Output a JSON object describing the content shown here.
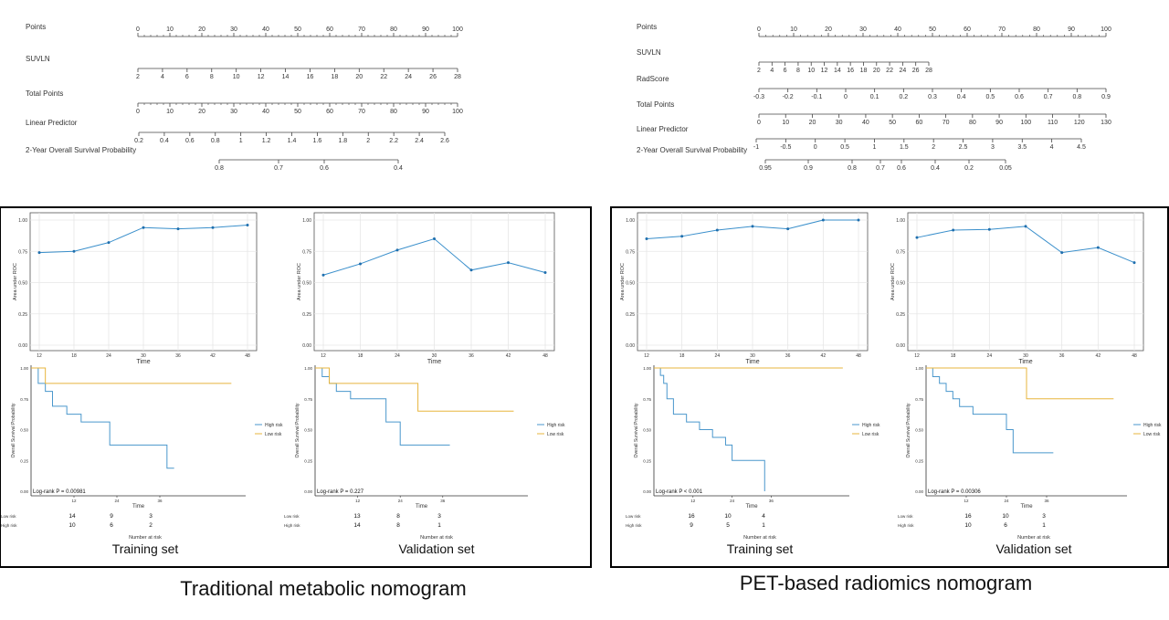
{
  "colors": {
    "roc": "#3a8fcb",
    "high_risk": "#4a97cc",
    "low_risk": "#e7b53d",
    "axis": "#333333",
    "grid": "#e6e6e6"
  },
  "nomogram_left": {
    "rows": [
      {
        "label": "Points",
        "ticks": [
          "0",
          "10",
          "20",
          "30",
          "40",
          "50",
          "60",
          "70",
          "80",
          "90",
          "100"
        ]
      },
      {
        "label": "SUVLN",
        "ticks": [
          "2",
          "4",
          "6",
          "8",
          "10",
          "12",
          "14",
          "16",
          "18",
          "20",
          "22",
          "24",
          "26",
          "28"
        ]
      },
      {
        "label": "Total Points",
        "ticks": [
          "0",
          "10",
          "20",
          "30",
          "40",
          "50",
          "60",
          "70",
          "80",
          "90",
          "100"
        ]
      },
      {
        "label": "Linear Predictor",
        "ticks": [
          "0.2",
          "0.4",
          "0.6",
          "0.8",
          "1",
          "1.2",
          "1.4",
          "1.6",
          "1.8",
          "2",
          "2.2",
          "2.4",
          "2.6"
        ]
      },
      {
        "label": "2-Year Overall Survival Probability",
        "ticks": [
          "0.8",
          "0.7",
          "0.6",
          "0.4"
        ]
      }
    ]
  },
  "nomogram_right": {
    "rows": [
      {
        "label": "Points",
        "ticks": [
          "0",
          "10",
          "20",
          "30",
          "40",
          "50",
          "60",
          "70",
          "80",
          "90",
          "100"
        ]
      },
      {
        "label": "SUVLN",
        "ticks": [
          "2",
          "4",
          "6",
          "8",
          "10",
          "12",
          "14",
          "16",
          "18",
          "20",
          "22",
          "24",
          "26",
          "28"
        ]
      },
      {
        "label": "RadScore",
        "ticks": [
          "-0.3",
          "-0.2",
          "-0.1",
          "0",
          "0.1",
          "0.2",
          "0.3",
          "0.4",
          "0.5",
          "0.6",
          "0.7",
          "0.8",
          "0.9"
        ]
      },
      {
        "label": "Total Points",
        "ticks": [
          "0",
          "10",
          "20",
          "30",
          "40",
          "50",
          "60",
          "70",
          "80",
          "90",
          "100",
          "110",
          "120",
          "130"
        ]
      },
      {
        "label": "Linear Predictor",
        "ticks": [
          "-1",
          "-0.5",
          "0",
          "0.5",
          "1",
          "1.5",
          "2",
          "2.5",
          "3",
          "3.5",
          "4",
          "4.5"
        ]
      },
      {
        "label": "2-Year Overall Survival Probability",
        "ticks": [
          "0.95",
          "0.9",
          "0.8",
          "0.7",
          "0.6",
          "0.4",
          "0.2",
          "0.05"
        ]
      }
    ]
  },
  "chart_data": [
    {
      "id": "roc_trad_train",
      "type": "line",
      "xlabel": "Time",
      "ylabel": "Area under ROC",
      "x": [
        12,
        18,
        24,
        30,
        36,
        42,
        48
      ],
      "y": [
        0.74,
        0.75,
        0.82,
        0.94,
        0.93,
        0.94,
        0.96
      ],
      "yticks": [
        "0.00",
        "0.25",
        "0.50",
        "0.75",
        "1.00"
      ],
      "ylim": [
        0,
        1
      ],
      "xlim": [
        12,
        48
      ]
    },
    {
      "id": "roc_trad_valid",
      "type": "line",
      "xlabel": "Time",
      "ylabel": "Area under ROC",
      "x": [
        12,
        18,
        24,
        30,
        36,
        42,
        48
      ],
      "y": [
        0.56,
        0.65,
        0.76,
        0.85,
        0.6,
        0.66,
        0.58
      ],
      "yticks": [
        "0.00",
        "0.25",
        "0.50",
        "0.75",
        "1.00"
      ],
      "ylim": [
        0,
        1
      ],
      "xlim": [
        12,
        48
      ]
    },
    {
      "id": "roc_pet_train",
      "type": "line",
      "xlabel": "Time",
      "ylabel": "Area under ROC",
      "x": [
        12,
        18,
        24,
        30,
        36,
        42,
        48
      ],
      "y": [
        0.85,
        0.87,
        0.92,
        0.95,
        0.93,
        1.0,
        1.0
      ],
      "yticks": [
        "0.00",
        "0.25",
        "0.50",
        "0.75",
        "1.00"
      ],
      "ylim": [
        0,
        1
      ],
      "xlim": [
        12,
        48
      ]
    },
    {
      "id": "roc_pet_valid",
      "type": "line",
      "xlabel": "Time",
      "ylabel": "Area under ROC",
      "x": [
        12,
        18,
        24,
        30,
        36,
        42,
        48
      ],
      "y": [
        0.86,
        0.92,
        0.925,
        0.95,
        0.74,
        0.78,
        0.66
      ],
      "yticks": [
        "0.00",
        "0.25",
        "0.50",
        "0.75",
        "1.00"
      ],
      "ylim": [
        0,
        1
      ],
      "xlim": [
        12,
        48
      ]
    },
    {
      "id": "km_trad_train",
      "type": "line",
      "xlabel": "Time",
      "ylabel": "Overall Survival Probability",
      "yticks": [
        "0.00",
        "0.25",
        "0.50",
        "0.75",
        "1.00"
      ],
      "xticks": [
        "12",
        "24",
        "36"
      ],
      "xlim": [
        0,
        60
      ],
      "pvalue": "Log-rank P = 0.00981",
      "series": [
        {
          "name": "High risk",
          "color_key": "high_risk",
          "x": [
            0,
            2,
            2,
            4,
            4,
            6,
            6,
            10,
            10,
            14,
            14,
            22,
            22,
            30,
            30,
            38,
            38,
            40
          ],
          "y": [
            1,
            1,
            0.875,
            0.875,
            0.81,
            0.81,
            0.69,
            0.69,
            0.625,
            0.625,
            0.5625,
            0.5625,
            0.375,
            0.375,
            0.375,
            0.375,
            0.1875,
            0.1875
          ]
        },
        {
          "name": "Low risk",
          "color_key": "low_risk",
          "x": [
            0,
            4,
            4,
            56
          ],
          "y": [
            1,
            1,
            0.875,
            0.875
          ]
        }
      ],
      "risk_table": {
        "title": "Number at risk",
        "rows": [
          {
            "label": "Low risk",
            "values": [
              "14",
              "9",
              "3"
            ]
          },
          {
            "label": "High risk",
            "values": [
              "10",
              "6",
              "2"
            ]
          }
        ]
      },
      "set_label": "Training set"
    },
    {
      "id": "km_trad_valid",
      "type": "line",
      "xlabel": "Time",
      "ylabel": "Overall Survival Probability",
      "yticks": [
        "0.00",
        "0.25",
        "0.50",
        "0.75",
        "1.00"
      ],
      "xticks": [
        "12",
        "24",
        "36"
      ],
      "xlim": [
        0,
        60
      ],
      "pvalue": "Log-rank P = 0.227",
      "series": [
        {
          "name": "High risk",
          "color_key": "high_risk",
          "x": [
            0,
            2,
            2,
            4,
            4,
            6,
            6,
            10,
            10,
            20,
            20,
            24,
            24,
            26,
            26,
            38
          ],
          "y": [
            1,
            1,
            0.93,
            0.93,
            0.875,
            0.875,
            0.81,
            0.81,
            0.75,
            0.75,
            0.5625,
            0.5625,
            0.375,
            0.375,
            0.375,
            0.375
          ]
        },
        {
          "name": "Low risk",
          "color_key": "low_risk",
          "x": [
            0,
            4,
            4,
            24,
            24,
            29,
            29,
            56
          ],
          "y": [
            1,
            1,
            0.875,
            0.875,
            0.875,
            0.875,
            0.65,
            0.65
          ]
        }
      ],
      "risk_table": {
        "title": "Number at risk",
        "rows": [
          {
            "label": "Low risk",
            "values": [
              "13",
              "8",
              "3"
            ]
          },
          {
            "label": "High risk",
            "values": [
              "14",
              "8",
              "1"
            ]
          }
        ]
      },
      "set_label": "Validation set"
    },
    {
      "id": "km_pet_train",
      "type": "line",
      "xlabel": "Time",
      "ylabel": "Overall Survival Probability",
      "yticks": [
        "0.00",
        "0.25",
        "0.50",
        "0.75",
        "1.00"
      ],
      "xticks": [
        "12",
        "24",
        "36"
      ],
      "xlim": [
        0,
        60
      ],
      "pvalue": "Log-rank P < 0.001",
      "series": [
        {
          "name": "High risk",
          "color_key": "high_risk",
          "x": [
            0,
            2,
            2,
            3,
            3,
            4,
            4,
            6,
            6,
            10,
            10,
            14,
            14,
            18,
            18,
            22,
            22,
            24,
            24,
            34,
            34
          ],
          "y": [
            1,
            1,
            0.94,
            0.94,
            0.875,
            0.875,
            0.75,
            0.75,
            0.625,
            0.625,
            0.5625,
            0.5625,
            0.5,
            0.5,
            0.4375,
            0.4375,
            0.375,
            0.375,
            0.25,
            0.25,
            0.0
          ]
        },
        {
          "name": "Low risk",
          "color_key": "low_risk",
          "x": [
            0,
            58
          ],
          "y": [
            1,
            1
          ]
        }
      ],
      "risk_table": {
        "title": "Number at risk",
        "rows": [
          {
            "label": "Low risk",
            "values": [
              "16",
              "10",
              "4"
            ]
          },
          {
            "label": "High risk",
            "values": [
              "9",
              "5",
              "1"
            ]
          }
        ]
      },
      "set_label": "Training set"
    },
    {
      "id": "km_pet_valid",
      "type": "line",
      "xlabel": "Time",
      "ylabel": "Overall Survival Probability",
      "yticks": [
        "0.00",
        "0.25",
        "0.50",
        "0.75",
        "1.00"
      ],
      "xticks": [
        "12",
        "24",
        "36"
      ],
      "xlim": [
        0,
        60
      ],
      "pvalue": "Log-rank P = 0.00306",
      "series": [
        {
          "name": "High risk",
          "color_key": "high_risk",
          "x": [
            0,
            2,
            2,
            4,
            4,
            6,
            6,
            8,
            8,
            10,
            10,
            14,
            14,
            24,
            24,
            26,
            26,
            38
          ],
          "y": [
            1,
            1,
            0.93,
            0.93,
            0.875,
            0.875,
            0.81,
            0.81,
            0.75,
            0.75,
            0.6875,
            0.6875,
            0.625,
            0.625,
            0.5,
            0.5,
            0.3125,
            0.3125
          ]
        },
        {
          "name": "Low risk",
          "color_key": "low_risk",
          "x": [
            0,
            30,
            30,
            56
          ],
          "y": [
            1,
            1,
            0.75,
            0.75
          ]
        }
      ],
      "risk_table": {
        "title": "Number at risk",
        "rows": [
          {
            "label": "Low risk",
            "values": [
              "16",
              "10",
              "3"
            ]
          },
          {
            "label": "High risk",
            "values": [
              "10",
              "6",
              "1"
            ]
          }
        ]
      },
      "set_label": "Validation set"
    }
  ],
  "panel_titles": [
    "Traditional metabolic nomogram",
    "PET-based radiomics nomogram"
  ]
}
